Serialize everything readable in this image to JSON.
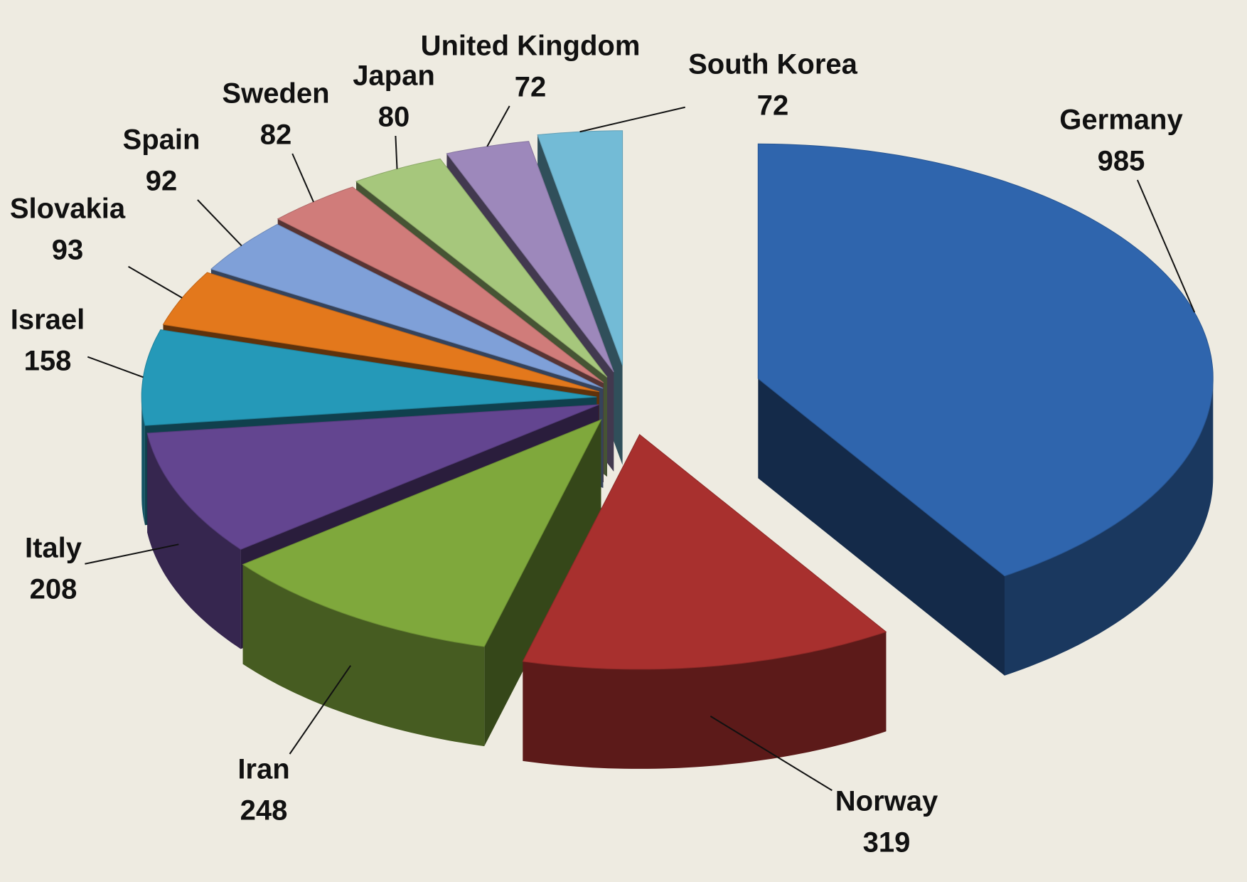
{
  "chart_data": {
    "type": "pie",
    "categories": [
      "Germany",
      "Norway",
      "Iran",
      "Italy",
      "Israel",
      "Slovakia",
      "Spain",
      "Sweden",
      "Japan",
      "United Kingdom",
      "South Korea"
    ],
    "values": [
      985,
      319,
      248,
      208,
      158,
      93,
      92,
      82,
      80,
      72,
      72
    ],
    "colors": [
      "#2f65ad",
      "#a8302e",
      "#7fa83c",
      "#634590",
      "#2599b8",
      "#e3781c",
      "#7fa0d8",
      "#d07c7a",
      "#a6c77c",
      "#9d88bb",
      "#73bbd6"
    ]
  }
}
